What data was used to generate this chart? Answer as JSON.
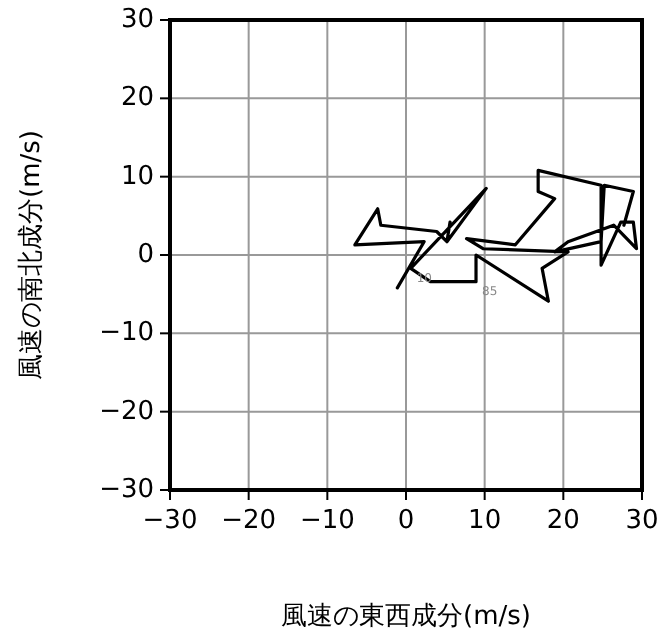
{
  "chart_data": {
    "type": "line",
    "xlabel": "風速の東西成分(m/s)",
    "ylabel": "風速の南北成分(m/s)",
    "xlim": [
      -30,
      30
    ],
    "ylim": [
      -30,
      30
    ],
    "xticks": [
      -30,
      -20,
      -10,
      0,
      10,
      20,
      30
    ],
    "yticks": [
      -30,
      -20,
      -10,
      0,
      10,
      20,
      30
    ],
    "grid": true,
    "series": [
      {
        "color": "#000000",
        "x": [
          -1.1,
          2.3,
          -6.5,
          -3.6,
          -3.2,
          3.9,
          5.2,
          5.6,
          5.2,
          10.2,
          0.6,
          3.1,
          8.9,
          8.9,
          18.1,
          17.3,
          20.6,
          9.8,
          7.7,
          13.9,
          18.9,
          16.8,
          16.8,
          24.8,
          24.8,
          27.3,
          28.9,
          29.3,
          26.4,
          20.6,
          18.9,
          24.8,
          25.2,
          28.9,
          27.7
        ],
        "values": [
          -4.2,
          1.7,
          1.3,
          5.9,
          3.8,
          3.0,
          1.7,
          4.2,
          1.7,
          8.5,
          -1.7,
          -3.4,
          -3.4,
          0,
          -5.9,
          -1.7,
          0.4,
          0.8,
          2.1,
          1.3,
          7.2,
          8.1,
          10.8,
          8.9,
          -1.3,
          4.2,
          4.2,
          0.8,
          3.8,
          1.7,
          0.4,
          1.7,
          8.9,
          8.1,
          3.8
        ]
      }
    ],
    "annotations": [
      {
        "text": "10",
        "x": 0.6,
        "y": -1.7
      },
      {
        "text": "85",
        "x": 8.9,
        "y": -3.4
      }
    ]
  }
}
